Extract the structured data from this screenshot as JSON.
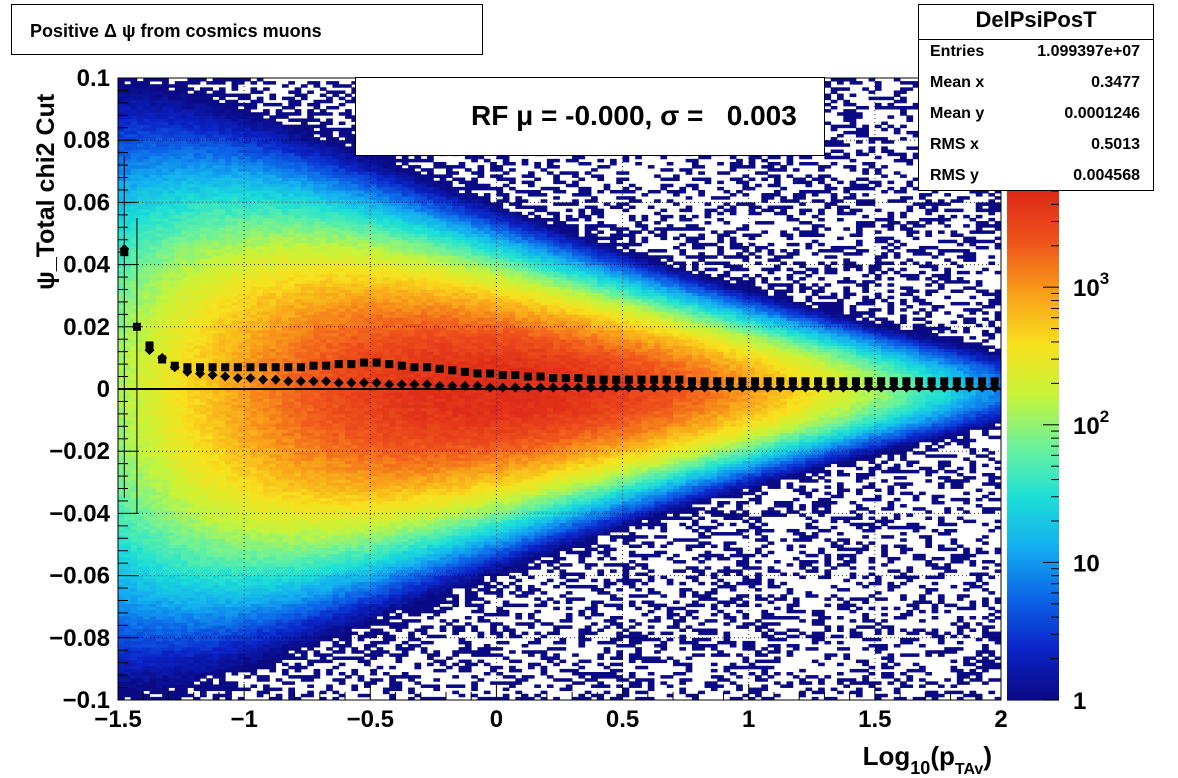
{
  "title": "Positive Δ ψ from cosmics muons",
  "stats": {
    "name": "DelPsiPosT",
    "rows": [
      {
        "label": "Entries",
        "value": "1.099397e+07"
      },
      {
        "label": "Mean x",
        "value": "0.3477"
      },
      {
        "label": "Mean y",
        "value": "0.0001246"
      },
      {
        "label": "RMS x",
        "value": "0.5013"
      },
      {
        "label": "RMS y",
        "value": "0.004568"
      }
    ]
  },
  "legend": {
    "text": "RF μ = -0.000, σ =   0.003"
  },
  "chart_data": {
    "type": "heatmap",
    "title": "Positive Δ ψ from cosmics muons",
    "xlabel": "Log10(pTAv)",
    "xlabel_parts": {
      "main": "Log",
      "sub1": "10",
      "mid": "(p",
      "sub2": "TAv",
      "end": ")"
    },
    "ylabel": "ψ_Total chi2 Cut",
    "xlim": [
      -1.5,
      2
    ],
    "ylim": [
      -0.1,
      0.1
    ],
    "x_ticks": [
      -1.5,
      -1,
      -0.5,
      0,
      0.5,
      1,
      1.5,
      2
    ],
    "x_tick_labels": [
      "−1.5",
      "−1",
      "−0.5",
      "0",
      "0.5",
      "1",
      "1.5",
      "2"
    ],
    "y_ticks": [
      -0.1,
      -0.08,
      -0.06,
      -0.04,
      -0.02,
      0,
      0.02,
      0.04,
      0.06,
      0.08,
      0.1
    ],
    "y_tick_labels": [
      "−0.1",
      "−0.08",
      "−0.06",
      "−0.04",
      "−0.02",
      "0",
      "0.02",
      "0.04",
      "0.06",
      "0.08",
      "0.1"
    ],
    "grid": true,
    "log_z": true,
    "z_range": [
      1,
      5000
    ],
    "z_tick_values": [
      1,
      10,
      100,
      1000
    ],
    "z_tick_labels": [
      {
        "base": "1",
        "exp": ""
      },
      {
        "base": "10",
        "exp": ""
      },
      {
        "base": "10",
        "exp": "2"
      },
      {
        "base": "10",
        "exp": "3"
      }
    ],
    "palette": [
      "#0a0a85",
      "#0b24c8",
      "#0d66e8",
      "#13aef0",
      "#1de0d6",
      "#6df29a",
      "#c6f43a",
      "#f8e11d",
      "#f9a01a",
      "#f0551c",
      "#de2a18"
    ],
    "density_model": {
      "peak_counts": 5000,
      "x_center": 0.0,
      "spread_at_low_x": 0.03,
      "spread_at_high_x": 0.005
    },
    "series": [
      {
        "name": "mean",
        "marker": "square",
        "x": [
          -1.475,
          -1.425,
          -1.375,
          -1.325,
          -1.275,
          -1.225,
          -1.175,
          -1.125,
          -1.075,
          -1.025,
          -0.975,
          -0.925,
          -0.875,
          -0.825,
          -0.775,
          -0.725,
          -0.675,
          -0.625,
          -0.575,
          -0.525,
          -0.475,
          -0.425,
          -0.375,
          -0.325,
          -0.275,
          -0.225,
          -0.175,
          -0.125,
          -0.075,
          -0.025,
          0.025,
          0.075,
          0.125,
          0.175,
          0.225,
          0.275,
          0.325,
          0.375,
          0.425,
          0.475,
          0.525,
          0.575,
          0.625,
          0.675,
          0.725,
          0.775,
          0.825,
          0.875,
          0.925,
          0.975,
          1.025,
          1.075,
          1.125,
          1.175,
          1.225,
          1.275,
          1.325,
          1.375,
          1.425,
          1.475,
          1.525,
          1.575,
          1.625,
          1.675,
          1.725,
          1.775,
          1.825,
          1.875,
          1.925,
          1.975
        ],
        "y": [
          0.044,
          0.02,
          0.014,
          0.0095,
          0.0075,
          0.007,
          0.007,
          0.007,
          0.007,
          0.007,
          0.007,
          0.007,
          0.007,
          0.007,
          0.007,
          0.0075,
          0.0075,
          0.008,
          0.008,
          0.0085,
          0.0085,
          0.008,
          0.0075,
          0.007,
          0.007,
          0.0065,
          0.006,
          0.0055,
          0.005,
          0.005,
          0.0045,
          0.0045,
          0.004,
          0.004,
          0.0035,
          0.0035,
          0.0035,
          0.003,
          0.003,
          0.003,
          0.003,
          0.003,
          0.003,
          0.003,
          0.003,
          0.0025,
          0.0025,
          0.0025,
          0.0025,
          0.0025,
          0.0025,
          0.0025,
          0.0025,
          0.0025,
          0.0025,
          0.0025,
          0.0025,
          0.0025,
          0.0025,
          0.0025,
          0.0025,
          0.0025,
          0.0025,
          0.0025,
          0.0025,
          0.0025,
          0.0025,
          0.0025,
          0.0025,
          0.0025
        ]
      },
      {
        "name": "RF",
        "marker": "diamond",
        "x": [
          -1.475,
          -1.425,
          -1.375,
          -1.325,
          -1.275,
          -1.225,
          -1.175,
          -1.125,
          -1.075,
          -1.025,
          -0.975,
          -0.925,
          -0.875,
          -0.825,
          -0.775,
          -0.725,
          -0.675,
          -0.625,
          -0.575,
          -0.525,
          -0.475,
          -0.425,
          -0.375,
          -0.325,
          -0.275,
          -0.225,
          -0.175,
          -0.125,
          -0.075,
          -0.025,
          0.025,
          0.075,
          0.125,
          0.175,
          0.225,
          0.275,
          0.325,
          0.375,
          0.425,
          0.475,
          0.525,
          0.575,
          0.625,
          0.675,
          0.725,
          0.775,
          0.825,
          0.875,
          0.925,
          0.975,
          1.025,
          1.075,
          1.125,
          1.175,
          1.225,
          1.275,
          1.325,
          1.375,
          1.425,
          1.475,
          1.525,
          1.575,
          1.625,
          1.675,
          1.725,
          1.775,
          1.825,
          1.875,
          1.925,
          1.975
        ],
        "y": [
          0.045,
          0.02,
          0.0125,
          0.01,
          0.007,
          0.0055,
          0.005,
          0.0045,
          0.004,
          0.0035,
          0.0035,
          0.003,
          0.003,
          0.0025,
          0.0025,
          0.0025,
          0.0025,
          0.002,
          0.002,
          0.002,
          0.002,
          0.0015,
          0.0015,
          0.0015,
          0.0015,
          0.001,
          0.001,
          0.001,
          0.001,
          0.0005,
          0.0005,
          0.0005,
          0.0005,
          0.0005,
          0.0005,
          0.0005,
          0.0005,
          0.0005,
          0.0005,
          0.0005,
          0.0005,
          0.0005,
          0.0005,
          0.0005,
          0.0005,
          0.0005,
          0.0005,
          0.0005,
          0.0005,
          0.0005,
          0.0005,
          0.0005,
          0.0005,
          0.0005,
          0.0005,
          0.0005,
          0.0005,
          0.0005,
          0.0005,
          0.0005,
          0.0005,
          0.0005,
          0.0005,
          0.0005,
          0.0005,
          0.0005,
          0.0005,
          0.0005,
          0.0005,
          0.0005
        ]
      }
    ],
    "fit_line": {
      "y": 0.0
    }
  }
}
